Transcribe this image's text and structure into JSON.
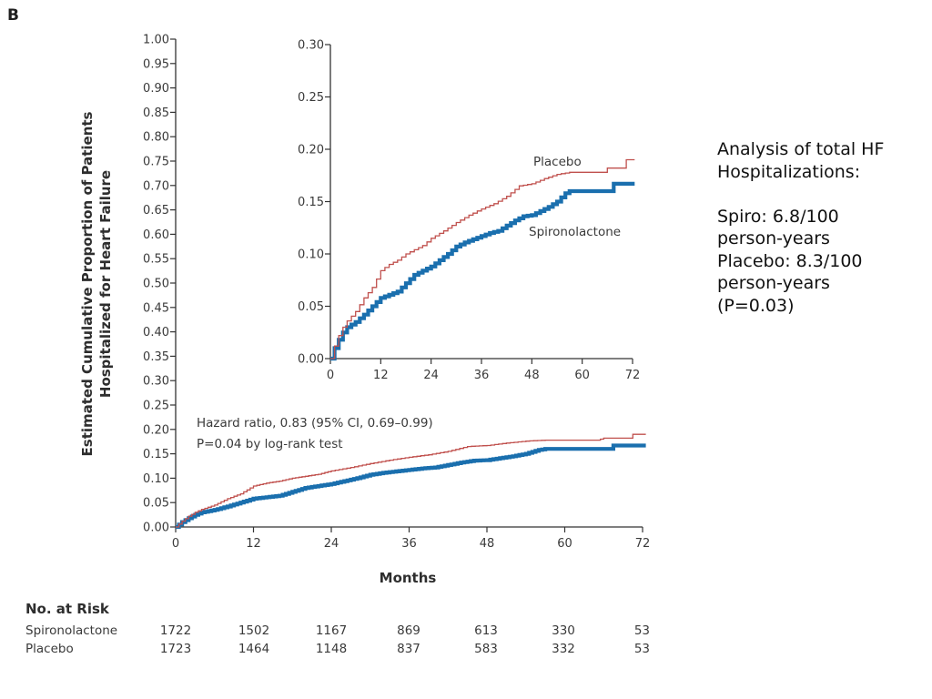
{
  "panel_letter": "B",
  "side_note": {
    "lines": [
      "Analysis of total HF",
      "Hospitalizations:",
      "",
      "Spiro:  6.8/100",
      "person-years",
      "Placebo:  8.3/100",
      "person-years",
      "(P=0.03)"
    ]
  },
  "risk_table": {
    "title": "No. at Risk",
    "rows": [
      {
        "label": "Spironolactone",
        "values": [
          "1722",
          "1502",
          "1167",
          "869",
          "613",
          "330",
          "53"
        ]
      },
      {
        "label": "Placebo",
        "values": [
          "1723",
          "1464",
          "1148",
          "837",
          "583",
          "332",
          "53"
        ]
      }
    ]
  },
  "chart_data": [
    {
      "type": "line",
      "subtype": "kaplan-meier-step",
      "title": "",
      "xlabel": "Months",
      "ylabel": "Estimated Cumulative Proportion of Patients Hospitalized for Heart Failure",
      "ylabel_lines": [
        "Estimated Cumulative Proportion of Patients",
        "Hospitalized for Heart Failure"
      ],
      "xlim": [
        0,
        72
      ],
      "ylim": [
        0,
        1.0
      ],
      "xticks": [
        0,
        12,
        24,
        36,
        48,
        60,
        72
      ],
      "xtick_labels": [
        "0",
        "12",
        "24",
        "36",
        "48",
        "60",
        "72"
      ],
      "yticks": [
        0,
        0.05,
        0.1,
        0.15,
        0.2,
        0.25,
        0.3,
        0.35,
        0.4,
        0.45,
        0.5,
        0.55,
        0.6,
        0.65,
        0.7,
        0.75,
        0.8,
        0.85,
        0.9,
        0.95,
        1.0
      ],
      "ytick_labels": [
        "0.00",
        "0.05",
        "0.10",
        "0.15",
        "0.20",
        "0.25",
        "0.30",
        "0.35",
        "0.40",
        "0.45",
        "0.50",
        "0.55",
        "0.60",
        "0.65",
        "0.70",
        "0.75",
        "0.80",
        "0.85",
        "0.90",
        "0.95",
        "1.00"
      ],
      "grid": false,
      "annotations": [
        "Hazard ratio, 0.83 (95% CI, 0.69–0.99)",
        "P=0.04 by log-rank test"
      ],
      "series": [
        {
          "name": "Placebo",
          "color": "#c0504d",
          "x": [
            0,
            1,
            2,
            3,
            4,
            6,
            8,
            10,
            12,
            14,
            16,
            18,
            20,
            22,
            24,
            27,
            30,
            33,
            36,
            39,
            42,
            45,
            48,
            51,
            54,
            57,
            60,
            65,
            66,
            70,
            70.5,
            72.5
          ],
          "y": [
            0,
            0.012,
            0.022,
            0.03,
            0.036,
            0.045,
            0.058,
            0.068,
            0.084,
            0.09,
            0.094,
            0.1,
            0.104,
            0.108,
            0.115,
            0.122,
            0.13,
            0.137,
            0.143,
            0.148,
            0.155,
            0.165,
            0.167,
            0.172,
            0.176,
            0.178,
            0.178,
            0.178,
            0.182,
            0.182,
            0.19,
            0.19
          ]
        },
        {
          "name": "Spironolactone",
          "color": "#1a6fae",
          "x": [
            0,
            1,
            2,
            3,
            4,
            6,
            8,
            10,
            12,
            14,
            16,
            18,
            20,
            22,
            24,
            26,
            28,
            30,
            32,
            34,
            36,
            38,
            40,
            42,
            44,
            46,
            48,
            50,
            52,
            54,
            56,
            57,
            67,
            67.5,
            72.5
          ],
          "y": [
            0,
            0.01,
            0.018,
            0.025,
            0.03,
            0.035,
            0.042,
            0.05,
            0.058,
            0.061,
            0.064,
            0.072,
            0.08,
            0.084,
            0.088,
            0.094,
            0.1,
            0.107,
            0.111,
            0.114,
            0.117,
            0.12,
            0.122,
            0.127,
            0.132,
            0.136,
            0.137,
            0.141,
            0.145,
            0.15,
            0.158,
            0.16,
            0.16,
            0.167,
            0.167
          ]
        }
      ]
    },
    {
      "type": "line",
      "subtype": "kaplan-meier-step-inset",
      "title": "",
      "xlabel": "",
      "ylabel": "",
      "xlim": [
        0,
        72
      ],
      "ylim": [
        0,
        0.3
      ],
      "xticks": [
        0,
        12,
        24,
        36,
        48,
        60,
        72
      ],
      "xtick_labels": [
        "0",
        "12",
        "24",
        "36",
        "48",
        "60",
        "72"
      ],
      "yticks": [
        0,
        0.05,
        0.1,
        0.15,
        0.2,
        0.25,
        0.3
      ],
      "ytick_labels": [
        "0.00",
        "0.05",
        "0.10",
        "0.15",
        "0.20",
        "0.25",
        "0.30"
      ],
      "grid": false,
      "legend_labels": [
        "Placebo",
        "Spironolactone"
      ],
      "series_ref": "same as main chart series"
    }
  ]
}
